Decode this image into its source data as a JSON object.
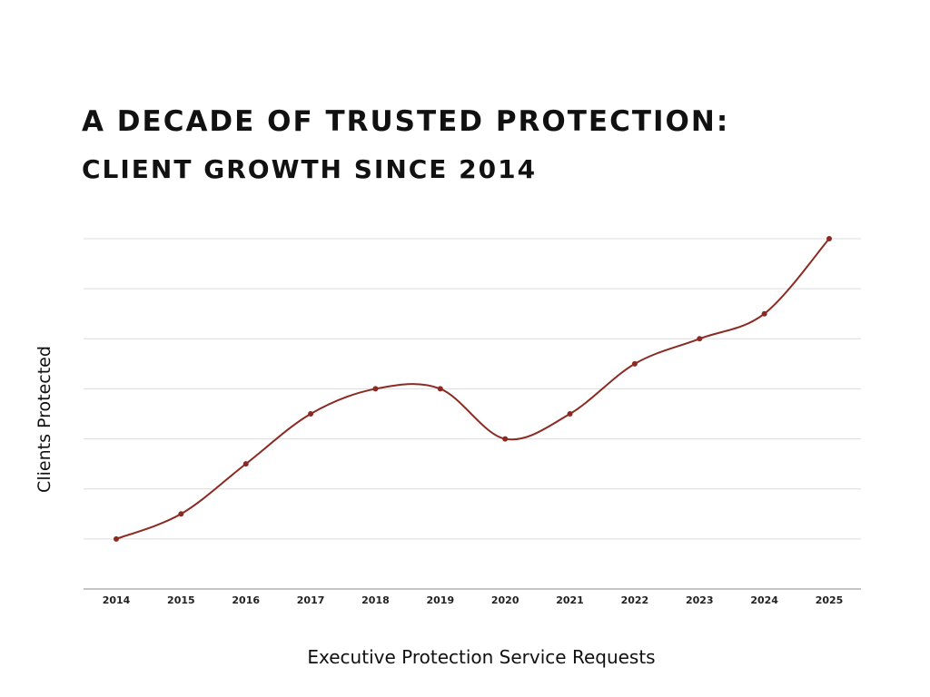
{
  "chart_data": {
    "type": "line",
    "title": "A DECADE OF TRUSTED PROTECTION:",
    "subtitle": "CLIENT GROWTH SINCE 2014",
    "xlabel": "Executive Protection Service Requests",
    "ylabel": "Clients Protected",
    "categories": [
      "2014",
      "2015",
      "2016",
      "2017",
      "2018",
      "2019",
      "2020",
      "2021",
      "2022",
      "2023",
      "2024",
      "2025"
    ],
    "series": [
      {
        "values": [
          1,
          2,
          4,
          6,
          7,
          7,
          5,
          6,
          8,
          9,
          10,
          13
        ],
        "color": "#8b2a22"
      }
    ],
    "ylim": [
      -1,
      13
    ],
    "grid": true,
    "line_style": "smooth",
    "markers": true,
    "y_tick_labels_shown": false
  }
}
